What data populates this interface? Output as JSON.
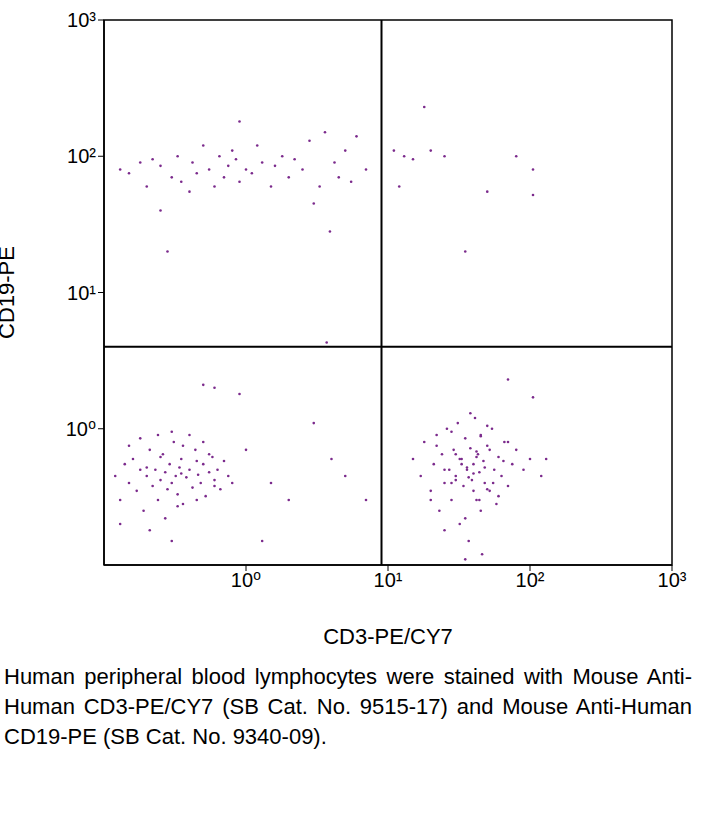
{
  "chart_data": {
    "type": "scatter",
    "xlabel": "CD3-PE/CY7",
    "ylabel": "CD19-PE",
    "caption": "Human peripheral blood lymphocytes were stained with Mouse Anti-Human CD3-PE/CY7 (SB Cat. No. 9515-17) and Mouse Anti-Human CD19-PE (SB Cat. No. 9340-09).",
    "log": true,
    "color": "#7b2a8c",
    "marker": "circle",
    "xlim": [
      0.1,
      1000
    ],
    "ylim": [
      0.1,
      1000
    ],
    "xticks": [
      {
        "value": 1,
        "label": "10⁰"
      },
      {
        "value": 10,
        "label": "10¹"
      },
      {
        "value": 100,
        "label": "10²"
      },
      {
        "value": 1000,
        "label": "10³"
      }
    ],
    "yticks": [
      {
        "value": 1,
        "label": "10⁰"
      },
      {
        "value": 10,
        "label": "10¹"
      },
      {
        "value": 100,
        "label": "10²"
      },
      {
        "value": 1000,
        "label": "10³"
      }
    ],
    "quadrant_lines": {
      "x": 9,
      "y": 4
    },
    "x": [
      0.13,
      0.15,
      0.18,
      0.2,
      0.22,
      0.25,
      0.28,
      0.3,
      0.33,
      0.35,
      0.4,
      0.42,
      0.45,
      0.5,
      0.55,
      0.6,
      0.65,
      0.7,
      0.75,
      0.8,
      0.85,
      0.9,
      1.0,
      1.1,
      1.2,
      1.3,
      1.5,
      1.6,
      1.8,
      2.0,
      2.2,
      2.5,
      2.8,
      3.0,
      3.3,
      3.6,
      3.9,
      4.2,
      4.5,
      5.0,
      5.5,
      6.0,
      7.0,
      3.7,
      0.25,
      0.9,
      0.12,
      0.13,
      0.14,
      0.15,
      0.16,
      0.17,
      0.18,
      0.19,
      0.2,
      0.21,
      0.22,
      0.23,
      0.24,
      0.25,
      0.26,
      0.27,
      0.28,
      0.29,
      0.3,
      0.31,
      0.32,
      0.33,
      0.34,
      0.35,
      0.36,
      0.38,
      0.4,
      0.42,
      0.44,
      0.46,
      0.48,
      0.5,
      0.52,
      0.55,
      0.58,
      0.6,
      0.63,
      0.66,
      0.7,
      0.75,
      0.8,
      0.13,
      0.15,
      0.18,
      0.21,
      0.24,
      0.27,
      0.3,
      0.33,
      0.36,
      0.4,
      0.45,
      0.5,
      0.55,
      0.6,
      0.3,
      0.25,
      0.2,
      0.35,
      0.45,
      1.0,
      1.5,
      2.0,
      3.0,
      4.0,
      5.0,
      7.0,
      0.5,
      0.9,
      0.6,
      1.3,
      11,
      13,
      18,
      20,
      25,
      35,
      50,
      80,
      105,
      105,
      12,
      15,
      15,
      17,
      18,
      20,
      21,
      22,
      23,
      24,
      25,
      26,
      27,
      28,
      29,
      30,
      31,
      32,
      33,
      34,
      35,
      36,
      37,
      38,
      39,
      40,
      41,
      42,
      43,
      44,
      45,
      46,
      47,
      48,
      50,
      52,
      54,
      56,
      58,
      60,
      63,
      66,
      70,
      75,
      80,
      90,
      100,
      120,
      20,
      22,
      25,
      28,
      30,
      32,
      35,
      38,
      40,
      42,
      45,
      48,
      50,
      55,
      60,
      65,
      70,
      25,
      30,
      35,
      40,
      45,
      50,
      33,
      37,
      42,
      28,
      36,
      44,
      52,
      70,
      105,
      130
    ],
    "values": [
      80,
      75,
      90,
      60,
      95,
      85,
      20,
      70,
      100,
      65,
      55,
      90,
      75,
      120,
      80,
      60,
      100,
      70,
      85,
      110,
      95,
      65,
      80,
      75,
      120,
      90,
      60,
      85,
      100,
      70,
      95,
      80,
      130,
      45,
      60,
      150,
      28,
      90,
      70,
      110,
      65,
      140,
      80,
      4.3,
      40,
      180,
      0.45,
      0.3,
      0.55,
      0.4,
      0.6,
      0.35,
      0.5,
      0.25,
      0.45,
      0.7,
      0.38,
      0.5,
      0.3,
      0.42,
      0.65,
      0.48,
      0.36,
      0.55,
      0.4,
      0.8,
      0.45,
      0.33,
      0.52,
      0.6,
      0.28,
      0.44,
      0.5,
      0.37,
      0.7,
      0.46,
      0.4,
      0.55,
      0.32,
      0.48,
      0.62,
      0.42,
      0.5,
      0.36,
      0.58,
      0.45,
      0.4,
      0.2,
      0.75,
      0.85,
      0.18,
      0.9,
      0.22,
      0.95,
      0.27,
      0.75,
      0.9,
      0.3,
      0.8,
      0.65,
      0.38,
      0.15,
      0.62,
      0.52,
      0.47,
      0.58,
      0.7,
      0.4,
      0.3,
      1.1,
      0.6,
      0.45,
      0.3,
      2.1,
      1.8,
      2.0,
      0.15,
      110,
      100,
      230,
      110,
      100,
      20,
      55,
      100,
      80,
      52,
      60,
      95,
      0.6,
      0.45,
      0.8,
      0.35,
      0.55,
      0.9,
      0.25,
      0.65,
      0.4,
      1.0,
      0.5,
      0.3,
      0.7,
      0.45,
      1.1,
      0.2,
      0.6,
      0.38,
      0.85,
      0.5,
      0.15,
      0.72,
      0.42,
      0.55,
      1.2,
      0.3,
      0.65,
      0.48,
      0.9,
      0.12,
      0.58,
      0.4,
      0.75,
      0.35,
      1.0,
      0.5,
      0.28,
      0.62,
      0.45,
      0.8,
      0.38,
      0.55,
      0.7,
      0.5,
      0.6,
      0.45,
      0.3,
      0.75,
      0.18,
      0.95,
      0.42,
      0.6,
      0.22,
      1.3,
      0.35,
      0.68,
      0.25,
      0.52,
      1.05,
      0.4,
      0.32,
      0.58,
      0.8,
      0.5,
      0.65,
      0.11,
      0.47,
      0.88,
      0.36,
      0.55,
      0.44,
      0.62,
      0.4,
      0.52,
      0.3,
      0.7,
      2.3,
      1.7,
      0.6
    ]
  }
}
